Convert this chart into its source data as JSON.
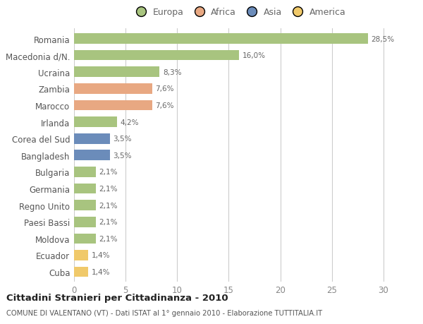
{
  "countries": [
    "Romania",
    "Macedonia d/N.",
    "Ucraina",
    "Zambia",
    "Marocco",
    "Irlanda",
    "Corea del Sud",
    "Bangladesh",
    "Bulgaria",
    "Germania",
    "Regno Unito",
    "Paesi Bassi",
    "Moldova",
    "Ecuador",
    "Cuba"
  ],
  "values": [
    28.5,
    16.0,
    8.3,
    7.6,
    7.6,
    4.2,
    3.5,
    3.5,
    2.1,
    2.1,
    2.1,
    2.1,
    2.1,
    1.4,
    1.4
  ],
  "labels": [
    "28,5%",
    "16,0%",
    "8,3%",
    "7,6%",
    "7,6%",
    "4,2%",
    "3,5%",
    "3,5%",
    "2,1%",
    "2,1%",
    "2,1%",
    "2,1%",
    "2,1%",
    "1,4%",
    "1,4%"
  ],
  "continents": [
    "Europa",
    "Europa",
    "Europa",
    "Africa",
    "Africa",
    "Europa",
    "Asia",
    "Asia",
    "Europa",
    "Europa",
    "Europa",
    "Europa",
    "Europa",
    "America",
    "America"
  ],
  "continent_colors": {
    "Europa": "#a8c47f",
    "Africa": "#e8a882",
    "Asia": "#6b8cba",
    "America": "#f0c96a"
  },
  "legend_order": [
    "Europa",
    "Africa",
    "Asia",
    "America"
  ],
  "title_bold": "Cittadini Stranieri per Cittadinanza - 2010",
  "subtitle": "COMUNE DI VALENTANO (VT) - Dati ISTAT al 1° gennaio 2010 - Elaborazione TUTTITALIA.IT",
  "xlim": [
    0,
    32
  ],
  "xticks": [
    0,
    5,
    10,
    15,
    20,
    25,
    30
  ],
  "bg_color": "#ffffff",
  "grid_color": "#cccccc",
  "bar_height": 0.62
}
